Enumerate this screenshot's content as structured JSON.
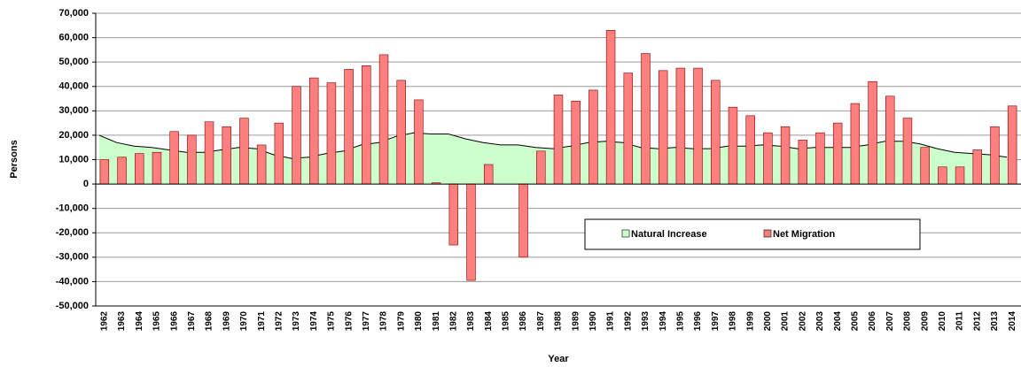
{
  "chart_data": {
    "type": "bar-area",
    "x_label": "Year",
    "y_label": "Persons",
    "categories": [
      "1962",
      "1963",
      "1964",
      "1965",
      "1966",
      "1967",
      "1968",
      "1969",
      "1970",
      "1971",
      "1972",
      "1973",
      "1974",
      "1975",
      "1976",
      "1977",
      "1978",
      "1979",
      "1980",
      "1981",
      "1982",
      "1983",
      "1984",
      "1985",
      "1986",
      "1987",
      "1988",
      "1989",
      "1990",
      "1991",
      "1992",
      "1993",
      "1994",
      "1995",
      "1996",
      "1997",
      "1998",
      "1999",
      "2000",
      "2001",
      "2002",
      "2003",
      "2004",
      "2005",
      "2006",
      "2007",
      "2008",
      "2009",
      "2010",
      "2011",
      "2012",
      "2013",
      "2014"
    ],
    "series": [
      {
        "name": "Natural Increase",
        "kind": "area",
        "color": "#ccffcc",
        "values": [
          20000,
          17000,
          15500,
          15000,
          14000,
          13000,
          13000,
          14000,
          15000,
          14500,
          12000,
          10500,
          11000,
          12500,
          13500,
          16000,
          17000,
          19500,
          21000,
          20500,
          20500,
          18500,
          17000,
          16000,
          16000,
          15000,
          14500,
          15500,
          17000,
          17500,
          17000,
          15000,
          14500,
          15000,
          14500,
          14500,
          15500,
          15500,
          16000,
          15500,
          14500,
          15000,
          15000,
          15000,
          16000,
          17500,
          17500,
          16500,
          14500,
          13000,
          12500,
          12000,
          11000
        ]
      },
      {
        "name": "Net Migration",
        "kind": "bar",
        "color": "#ff7f7f",
        "values": [
          10000,
          11000,
          12500,
          13000,
          21500,
          20000,
          25500,
          23500,
          27000,
          16000,
          25000,
          40000,
          43500,
          41500,
          47000,
          48500,
          53000,
          42500,
          34500,
          500,
          -25000,
          -39500,
          8000,
          0,
          -30000,
          13500,
          36500,
          34000,
          38500,
          63000,
          45500,
          53500,
          46500,
          47500,
          47500,
          42500,
          31500,
          28000,
          21000,
          23500,
          18000,
          21000,
          25000,
          33000,
          42000,
          36000,
          27000,
          15000,
          7000,
          7000,
          14000,
          23500,
          32000
        ]
      }
    ],
    "ylim": [
      -50000,
      70000
    ],
    "yticks": [
      {
        "value": -50000,
        "label": "-50,000"
      },
      {
        "value": -40000,
        "label": "-40,000"
      },
      {
        "value": -30000,
        "label": "-30,000"
      },
      {
        "value": -20000,
        "label": "-20,000"
      },
      {
        "value": -10000,
        "label": "-10,000"
      },
      0,
      {
        "value": 10000,
        "label": "10,000"
      },
      {
        "value": 20000,
        "label": "20,000"
      },
      {
        "value": 30000,
        "label": "30,000"
      },
      {
        "value": 40000,
        "label": "40,000"
      },
      {
        "value": 50000,
        "label": "50,000"
      },
      {
        "value": 60000,
        "label": "60,000"
      },
      {
        "value": 70000,
        "label": "70,000"
      }
    ],
    "grid": true
  }
}
